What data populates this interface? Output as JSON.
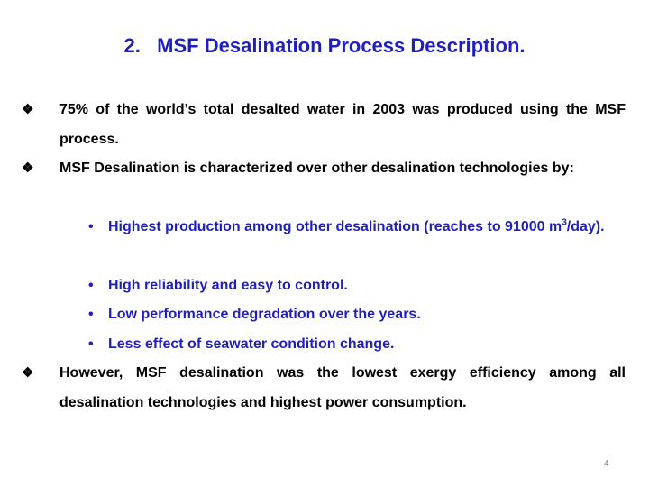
{
  "slide": {
    "title": "2.   MSF Desalination Process Description.",
    "bullet_marker": "❖",
    "sub_marker": "•",
    "bullets": [
      {
        "text": "75% of the world’s total desalted water in 2003  was produced using the MSF process."
      },
      {
        "text": "MSF Desalination is characterized over other desalination technologies by:"
      },
      {
        "text": "However, MSF desalination was the lowest exergy efficiency among all desalination technologies and highest power consumption."
      }
    ],
    "sub_bullets": [
      {
        "text_before": "Highest production among other desalination (reaches to 91000 m",
        "superscript": "3",
        "text_after": "/day)."
      },
      {
        "text": "High reliability and easy to control."
      },
      {
        "text": "Low performance degradation over the years."
      },
      {
        "text": "Less effect of seawater condition change."
      }
    ],
    "page_number": "4"
  },
  "colors": {
    "title": "#1f1fbf",
    "sub_bullets": "#1f1fbf",
    "body": "#000000",
    "page_number": "#7f7f7f"
  }
}
